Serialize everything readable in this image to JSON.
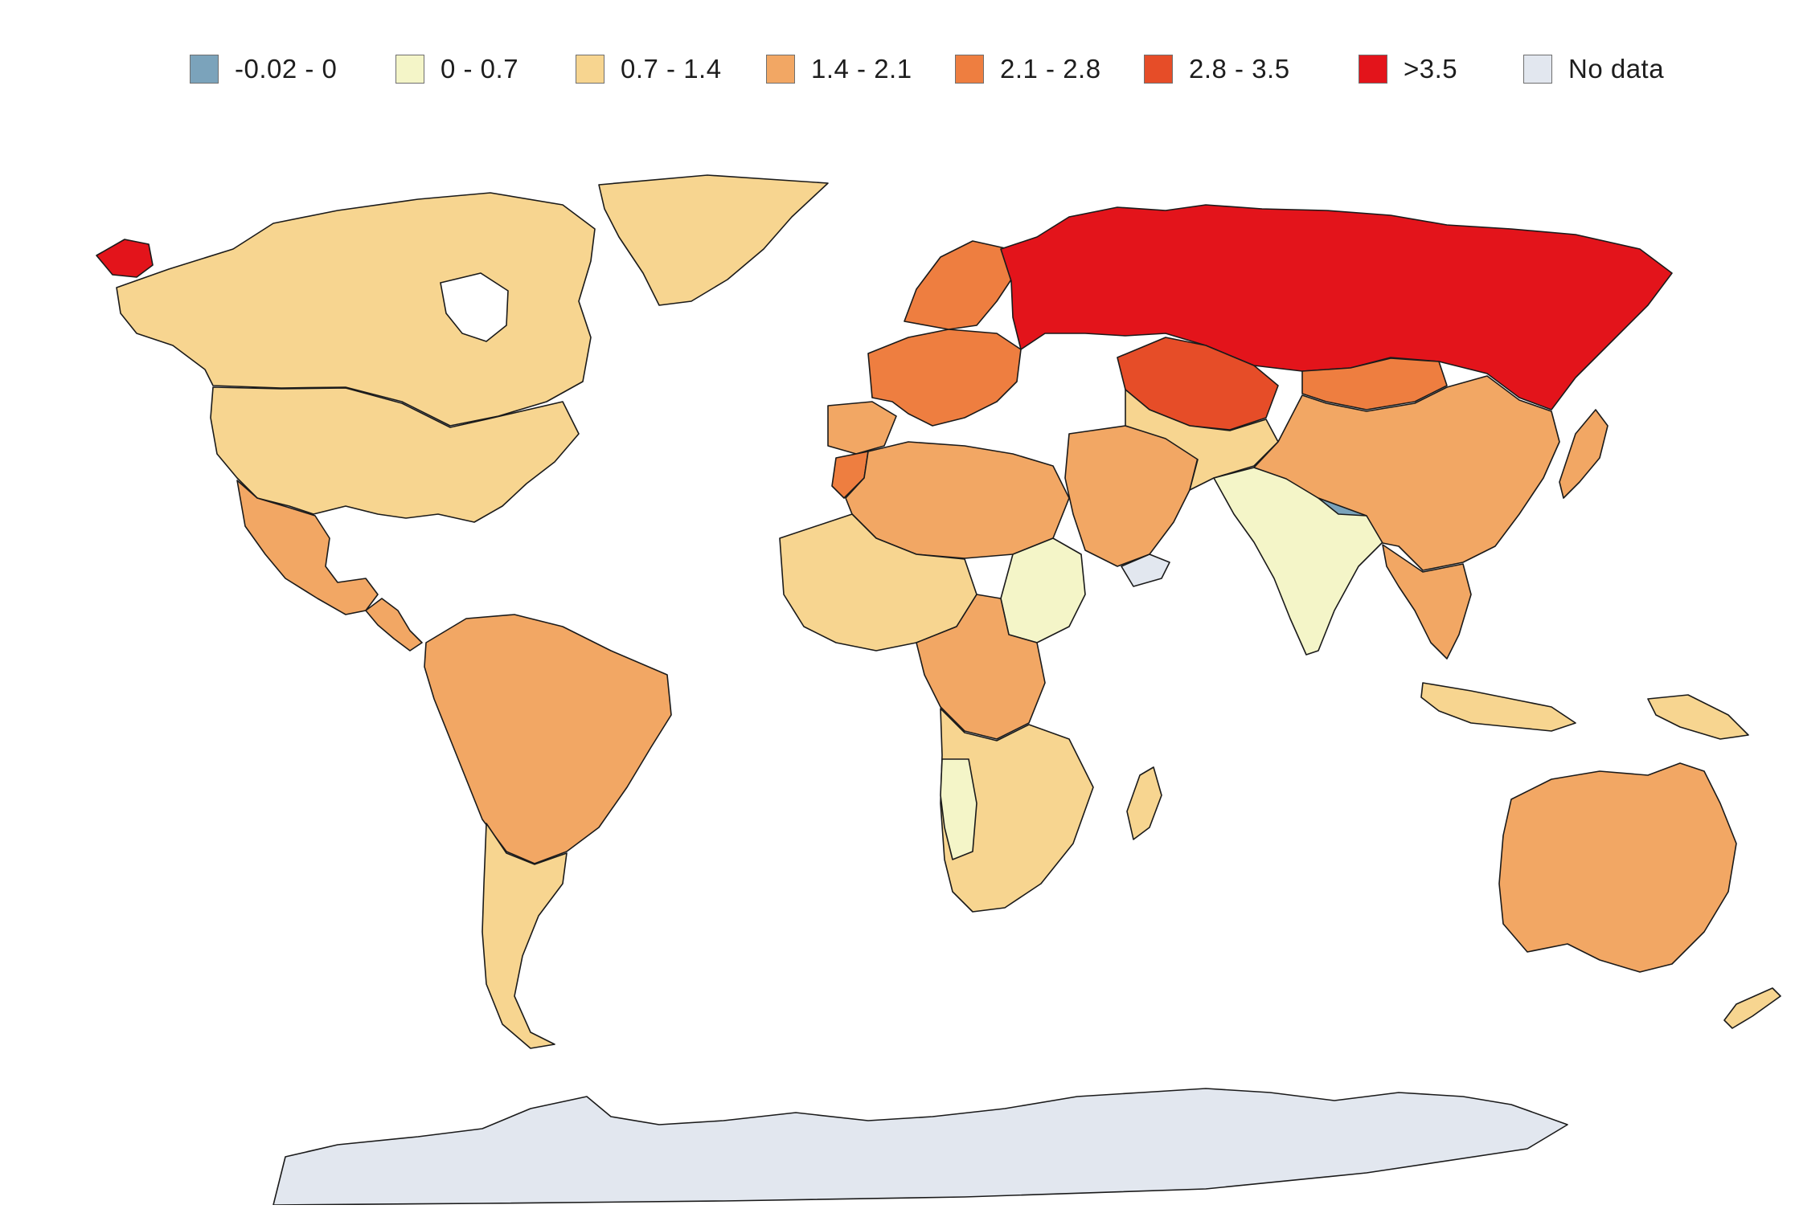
{
  "legend": {
    "items": [
      {
        "label": "-0.02 - 0",
        "color": "#7ba3bb"
      },
      {
        "label": "0 - 0.7",
        "color": "#f4f5c8"
      },
      {
        "label": "0.7 - 1.4",
        "color": "#f7d590"
      },
      {
        "label": "1.4 - 2.1",
        "color": "#f2a764"
      },
      {
        "label": "2.1 - 2.8",
        "color": "#ee7e40"
      },
      {
        "label": "2.8 - 3.5",
        "color": "#e64d28"
      },
      {
        "label": ">3.5",
        "color": "#e3141b"
      },
      {
        "label": "No data",
        "color": "#e2e7ef"
      }
    ]
  },
  "map": {
    "regions": [
      {
        "name": "Alaska",
        "class": ">3.5"
      },
      {
        "name": "Canada",
        "class": "0.7 - 1.4"
      },
      {
        "name": "United States",
        "class": "0.7 - 1.4"
      },
      {
        "name": "Greenland",
        "class": "0.7 - 1.4"
      },
      {
        "name": "Mexico",
        "class": "1.4 - 2.1"
      },
      {
        "name": "Central America",
        "class": "1.4 - 2.1"
      },
      {
        "name": "South America",
        "class": "1.4 - 2.1"
      },
      {
        "name": "Southern Cone",
        "class": "0.7 - 1.4"
      },
      {
        "name": "Western Europe",
        "class": "2.1 - 2.8"
      },
      {
        "name": "Scandinavia",
        "class": "2.1 - 2.8"
      },
      {
        "name": "Russia",
        "class": ">3.5"
      },
      {
        "name": "Kazakhstan",
        "class": "2.8 - 3.5"
      },
      {
        "name": "Iberia",
        "class": "1.4 - 2.1"
      },
      {
        "name": "Morocco",
        "class": "2.1 - 2.8"
      },
      {
        "name": "North Africa",
        "class": "1.4 - 2.1"
      },
      {
        "name": "West Africa",
        "class": "0.7 - 1.4"
      },
      {
        "name": "Sudan",
        "class": "0 - 0.7"
      },
      {
        "name": "Central Africa",
        "class": "1.4 - 2.1"
      },
      {
        "name": "Southern Africa",
        "class": "0.7 - 1.4"
      },
      {
        "name": "Namibia",
        "class": "0 - 0.7"
      },
      {
        "name": "Madagascar",
        "class": "0.7 - 1.4"
      },
      {
        "name": "Middle East",
        "class": "1.4 - 2.1"
      },
      {
        "name": "Yemen",
        "class": "No data"
      },
      {
        "name": "Central Asia",
        "class": "0.7 - 1.4"
      },
      {
        "name": "India",
        "class": "0 - 0.7"
      },
      {
        "name": "Nepal",
        "class": "-0.02 - 0"
      },
      {
        "name": "China",
        "class": "1.4 - 2.1"
      },
      {
        "name": "Mongolia",
        "class": "2.1 - 2.8"
      },
      {
        "name": "Southeast Asia",
        "class": "1.4 - 2.1"
      },
      {
        "name": "Japan",
        "class": "1.4 - 2.1"
      },
      {
        "name": "Indonesia",
        "class": "0.7 - 1.4"
      },
      {
        "name": "Papua New Guinea",
        "class": "0.7 - 1.4"
      },
      {
        "name": "Australia",
        "class": "1.4 - 2.1"
      },
      {
        "name": "New Zealand",
        "class": "0.7 - 1.4"
      },
      {
        "name": "Antarctica",
        "class": "No data"
      }
    ]
  }
}
